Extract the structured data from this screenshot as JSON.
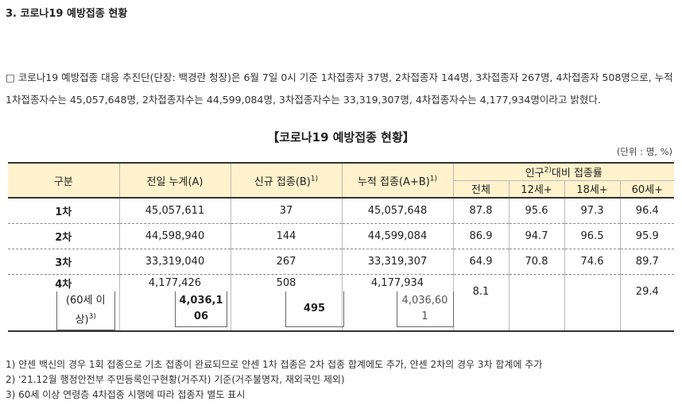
{
  "section_title": "3. 코로나19 예방접종 현황",
  "summary": "□ 코로나19 예방접종 대응 추진단(단장: 백경란 청장)은 6월 7일 0시 기준 1차접종자 37명, 2차접종자 144명, 3차접종자 267명, 4차접종자 508명으로, 누적 1차접종자수는 45,057,648명, 2차접종자수는 44,599,084명, 3차접종자수는 33,319,307명, 4차접종자수는 4,177,934명이라고 밝혔다.",
  "table_title": "【코로나19 예방접종 현황】",
  "unit": "(단위 : 명, %)",
  "headers": {
    "category": "구분",
    "prev_total": "전일 누계(A)",
    "new": "신규 접종(B)",
    "new_sup": "1)",
    "cumulative": "누적 접종(A+B)",
    "cumulative_sup": "1)",
    "rate_group_pre": "인구",
    "rate_group_sup": "2)",
    "rate_group_post": "대비 접종률",
    "rate_cols": [
      "전체",
      "12세+",
      "18세+",
      "60세+"
    ]
  },
  "rows": [
    {
      "label": "1차",
      "prev": "45,057,611",
      "new": "37",
      "cum": "45,057,648",
      "rates": [
        "87.8",
        "95.6",
        "97.3",
        "96.4"
      ]
    },
    {
      "label": "2차",
      "prev": "44,598,940",
      "new": "144",
      "cum": "44,599,084",
      "rates": [
        "86.9",
        "94.7",
        "96.5",
        "95.9"
      ]
    },
    {
      "label": "3차",
      "prev": "33,319,040",
      "new": "267",
      "cum": "33,319,307",
      "rates": [
        "64.9",
        "70.8",
        "74.6",
        "89.7"
      ]
    }
  ],
  "row4": {
    "label": "4차",
    "prev": "4,177,426",
    "new": "508",
    "cum": "4,177,934",
    "sub_label_line1": "(60세 이",
    "sub_label_line2": "상)",
    "sub_label_sup": "3)",
    "sub_prev_line1": "4,036,1",
    "sub_prev_line2": "06",
    "sub_new": "495",
    "sub_cum_line1": "4,036,60",
    "sub_cum_line2": "1",
    "rate_total": "8.1",
    "rate_60": "29.4"
  },
  "footnotes": [
    "1) 얀센 백신의 경우 1회 접종으로 기초 접종이 완료되므로 얀센 1차 접종은 2차 접종 합계에도 추가, 얀센 2차의 경우 3차 합계에 추가",
    "2) '21.12월 행정안전부 주민등록인구현황(거주자) 기준(거주불명자, 재외국민 제외)",
    "3) 60세 이상 연령층 4차접종 시행에 따라 접종자 별도 표시"
  ]
}
